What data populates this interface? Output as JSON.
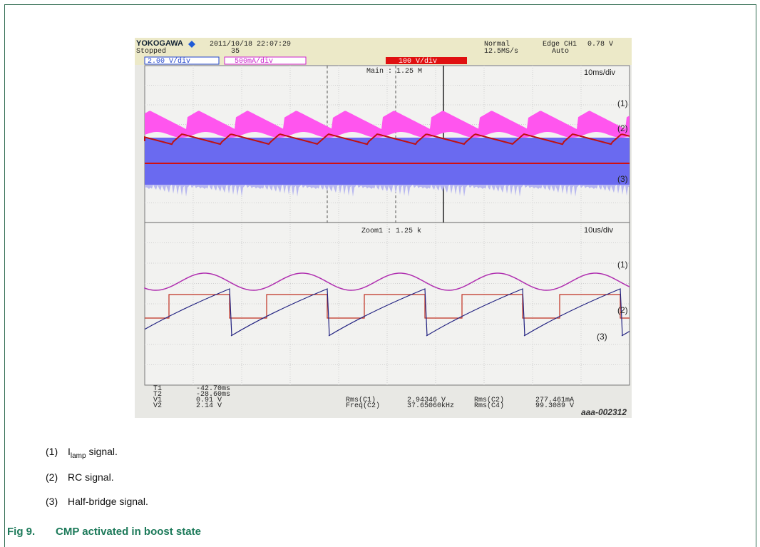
{
  "scope": {
    "header": {
      "brand": "YOKOGAWA",
      "datetime": "2011/10/18 22:07:29",
      "status": "Stopped",
      "count": "35",
      "mode": "Normal",
      "rate": "12.5MS/s",
      "trigger": "Edge CH1",
      "level": "0.78 V",
      "trigger_mode": "Auto"
    },
    "channels": [
      "2.00 V/div",
      "500mA/div",
      "100 V/div"
    ],
    "main": {
      "label": "Main : 1.25 M",
      "timebase": "10ms/div",
      "markers": [
        "(1)",
        "(2)",
        "(3)"
      ]
    },
    "zoom": {
      "label": "Zoom1 : 1.25 k",
      "timebase": "10us/div",
      "markers": [
        "(1)",
        "(2)",
        "(3)"
      ]
    },
    "measurements": [
      [
        "T1",
        "-42.70ms"
      ],
      [
        "T2",
        "-28.60ms"
      ],
      [
        "V1",
        "0.91 V"
      ],
      [
        "V2",
        "2.14 V"
      ]
    ],
    "stats": [
      [
        "Rms(C1)",
        "2.94346 V"
      ],
      [
        "Freq(C2)",
        "37.65060kHz"
      ],
      [
        "Rms(C2)",
        "277.461mA"
      ],
      [
        "Rms(C4)",
        "99.3089 V"
      ]
    ],
    "id": "aaa-002312"
  },
  "legend": [
    {
      "number": "(1)",
      "text": "I",
      "subscript": "lamp",
      "rest": " signal."
    },
    {
      "number": "(2)",
      "text": "RC signal."
    },
    {
      "number": "(3)",
      "text": "Half-bridge signal."
    }
  ],
  "figure": {
    "label": "Fig 9.",
    "title": "CMP activated in boost state"
  }
}
